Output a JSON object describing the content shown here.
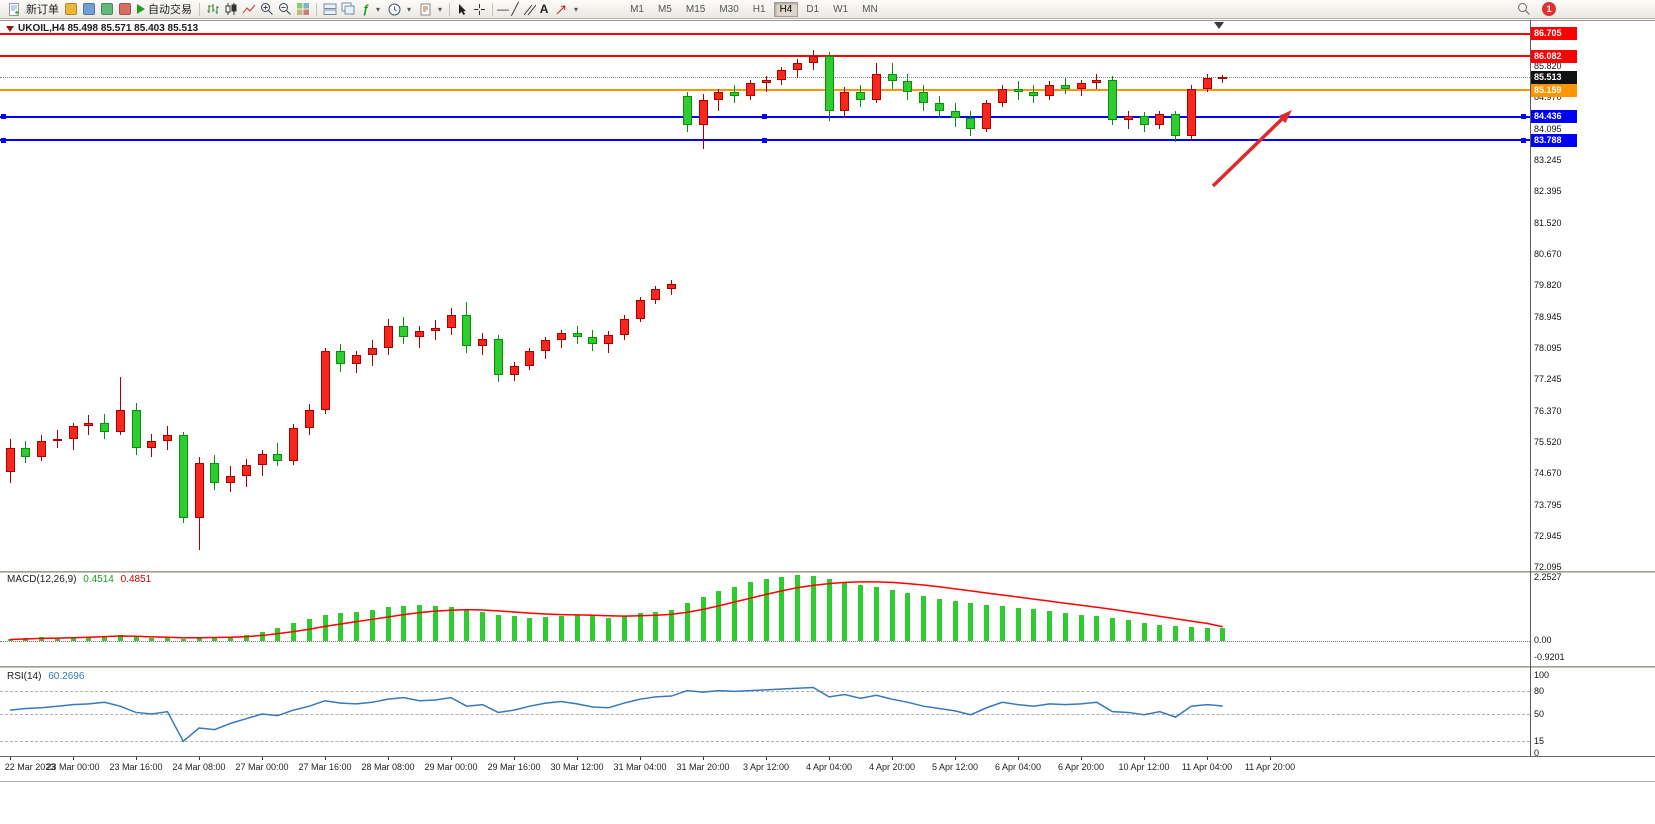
{
  "toolbar": {
    "new_order_label": "新订单",
    "autotrading_label": "自动交易",
    "timeframes": [
      "M1",
      "M5",
      "M15",
      "M30",
      "H1",
      "H4",
      "D1",
      "W1",
      "MN"
    ],
    "active_timeframe": "H4",
    "notification_count": "1",
    "glyphs": {
      "indicators": "ƒ",
      "hline": "—",
      "trendline": "╱",
      "text_tool": "A",
      "caret": "▾"
    }
  },
  "main_chart": {
    "title": "UKOIL,H4 85.498 85.571 85.403 85.513",
    "symbol": "UKOIL",
    "timeframe": "H4",
    "ohlc_display": {
      "open": "85.498",
      "high": "85.571",
      "low": "85.403",
      "close": "85.513"
    },
    "current_price": 85.513,
    "axis_labels": [
      "85.820",
      "84.970",
      "84.095",
      "83.245",
      "82.395",
      "81.520",
      "80.670",
      "79.820",
      "78.945",
      "78.095",
      "77.245",
      "76.370",
      "75.520",
      "74.670",
      "73.795",
      "72.945",
      "72.095"
    ],
    "price_badges": [
      {
        "value": "86.705",
        "color": "#ff0000"
      },
      {
        "value": "86.082",
        "color": "#ff0000"
      },
      {
        "value": "85.513",
        "color": "#111111"
      },
      {
        "value": "85.159",
        "color": "#ff9500"
      },
      {
        "value": "84.436",
        "color": "#0000ff"
      },
      {
        "value": "83.788",
        "color": "#0000ff"
      }
    ],
    "hlines": [
      {
        "price": 86.705,
        "color": "#ff0000",
        "width": 2,
        "handles": false
      },
      {
        "price": 86.082,
        "color": "#ff0000",
        "width": 2,
        "handles": false
      },
      {
        "price": 85.159,
        "color": "#ff9500",
        "width": 2,
        "handles": false
      },
      {
        "price": 84.436,
        "color": "#0000ff",
        "width": 2,
        "handles": true
      },
      {
        "price": 83.788,
        "color": "#0000ff",
        "width": 2,
        "handles": true
      }
    ],
    "candles": [
      [
        74.7,
        75.6,
        74.4,
        75.35
      ],
      [
        75.35,
        75.55,
        74.95,
        75.1
      ],
      [
        75.1,
        75.7,
        75.0,
        75.55
      ],
      [
        75.55,
        75.85,
        75.35,
        75.6
      ],
      [
        75.6,
        76.05,
        75.3,
        75.95
      ],
      [
        75.95,
        76.25,
        75.7,
        76.05
      ],
      [
        76.05,
        76.3,
        75.6,
        75.8
      ],
      [
        75.8,
        77.3,
        75.7,
        76.4
      ],
      [
        76.4,
        76.6,
        75.15,
        75.35
      ],
      [
        75.35,
        75.75,
        75.1,
        75.55
      ],
      [
        75.55,
        75.95,
        75.3,
        75.7
      ],
      [
        75.7,
        75.8,
        73.3,
        73.45
      ],
      [
        73.45,
        75.1,
        72.55,
        74.95
      ],
      [
        74.95,
        75.15,
        74.2,
        74.4
      ],
      [
        74.4,
        74.85,
        74.15,
        74.6
      ],
      [
        74.6,
        75.05,
        74.3,
        74.9
      ],
      [
        74.9,
        75.3,
        74.6,
        75.2
      ],
      [
        75.2,
        75.5,
        74.85,
        75.0
      ],
      [
        75.0,
        76.0,
        74.9,
        75.9
      ],
      [
        75.9,
        76.55,
        75.7,
        76.4
      ],
      [
        76.4,
        78.1,
        76.3,
        78.0
      ],
      [
        78.0,
        78.2,
        77.45,
        77.65
      ],
      [
        77.65,
        78.0,
        77.4,
        77.9
      ],
      [
        77.9,
        78.3,
        77.6,
        78.1
      ],
      [
        78.1,
        78.9,
        77.9,
        78.7
      ],
      [
        78.7,
        78.95,
        78.2,
        78.4
      ],
      [
        78.4,
        78.7,
        78.1,
        78.55
      ],
      [
        78.55,
        78.85,
        78.3,
        78.65
      ],
      [
        78.65,
        79.2,
        78.45,
        79.0
      ],
      [
        79.0,
        79.35,
        77.95,
        78.15
      ],
      [
        78.15,
        78.5,
        77.9,
        78.35
      ],
      [
        78.35,
        78.45,
        77.15,
        77.35
      ],
      [
        77.35,
        77.7,
        77.2,
        77.6
      ],
      [
        77.6,
        78.1,
        77.5,
        78.0
      ],
      [
        78.0,
        78.4,
        77.8,
        78.3
      ],
      [
        78.3,
        78.6,
        78.1,
        78.5
      ],
      [
        78.5,
        78.7,
        78.2,
        78.4
      ],
      [
        78.4,
        78.6,
        78.0,
        78.2
      ],
      [
        78.2,
        78.55,
        77.95,
        78.45
      ],
      [
        78.45,
        79.0,
        78.3,
        78.9
      ],
      [
        78.9,
        79.5,
        78.8,
        79.4
      ],
      [
        79.4,
        79.8,
        79.3,
        79.7
      ],
      [
        79.7,
        79.95,
        79.55,
        79.85
      ],
      [
        85.0,
        85.1,
        84.0,
        84.2
      ],
      [
        84.2,
        85.05,
        83.55,
        84.9
      ],
      [
        84.9,
        85.2,
        84.6,
        85.1
      ],
      [
        85.1,
        85.3,
        84.8,
        85.0
      ],
      [
        85.0,
        85.45,
        84.9,
        85.35
      ],
      [
        85.35,
        85.55,
        85.1,
        85.45
      ],
      [
        85.45,
        85.8,
        85.3,
        85.7
      ],
      [
        85.7,
        86.0,
        85.5,
        85.9
      ],
      [
        85.9,
        86.25,
        85.7,
        86.1
      ],
      [
        86.1,
        86.2,
        84.3,
        84.6
      ],
      [
        84.6,
        85.25,
        84.4,
        85.1
      ],
      [
        85.1,
        85.3,
        84.7,
        84.9
      ],
      [
        84.9,
        85.9,
        84.8,
        85.6
      ],
      [
        85.6,
        85.9,
        85.2,
        85.4
      ],
      [
        85.4,
        85.6,
        84.9,
        85.1
      ],
      [
        85.1,
        85.3,
        84.6,
        84.8
      ],
      [
        84.8,
        85.0,
        84.4,
        84.6
      ],
      [
        84.6,
        84.8,
        84.15,
        84.4
      ],
      [
        84.4,
        84.6,
        83.9,
        84.1
      ],
      [
        84.1,
        84.9,
        84.0,
        84.8
      ],
      [
        84.8,
        85.3,
        84.7,
        85.2
      ],
      [
        85.2,
        85.4,
        84.9,
        85.1
      ],
      [
        85.1,
        85.3,
        84.8,
        85.0
      ],
      [
        85.0,
        85.4,
        84.9,
        85.3
      ],
      [
        85.3,
        85.5,
        85.05,
        85.2
      ],
      [
        85.2,
        85.45,
        85.0,
        85.35
      ],
      [
        85.35,
        85.6,
        85.2,
        85.45
      ],
      [
        85.45,
        85.55,
        84.2,
        84.35
      ],
      [
        84.35,
        84.6,
        84.1,
        84.45
      ],
      [
        84.45,
        84.55,
        84.0,
        84.2
      ],
      [
        84.2,
        84.6,
        84.1,
        84.5
      ],
      [
        84.5,
        84.6,
        83.75,
        83.9
      ],
      [
        83.9,
        85.3,
        83.8,
        85.2
      ],
      [
        85.2,
        85.6,
        85.1,
        85.5
      ],
      [
        85.5,
        85.57,
        85.35,
        85.513
      ]
    ]
  },
  "macd": {
    "name": "MACD(12,26,9)",
    "value_main": "0.4514",
    "value_signal": "0.4851",
    "axis_top": "2.2527",
    "axis_zero": "0.00",
    "axis_bottom": "-0.9201",
    "histogram": [
      0.08,
      0.1,
      0.12,
      0.1,
      0.12,
      0.15,
      0.18,
      0.2,
      0.15,
      0.1,
      0.12,
      0.08,
      0.1,
      0.12,
      0.15,
      0.2,
      0.3,
      0.45,
      0.6,
      0.75,
      0.9,
      0.95,
      1.0,
      1.05,
      1.15,
      1.2,
      1.22,
      1.2,
      1.15,
      1.1,
      1.0,
      0.9,
      0.85,
      0.8,
      0.82,
      0.85,
      0.88,
      0.85,
      0.8,
      0.85,
      0.95,
      1.0,
      1.05,
      1.3,
      1.5,
      1.7,
      1.85,
      2.0,
      2.1,
      2.2,
      2.2527,
      2.22,
      2.1,
      2.0,
      1.9,
      1.85,
      1.75,
      1.65,
      1.55,
      1.45,
      1.35,
      1.28,
      1.22,
      1.18,
      1.12,
      1.08,
      1.02,
      0.95,
      0.9,
      0.85,
      0.78,
      0.7,
      0.62,
      0.56,
      0.5,
      0.47,
      0.455,
      0.4514
    ],
    "signal": [
      0.05,
      0.07,
      0.09,
      0.1,
      0.11,
      0.13,
      0.15,
      0.17,
      0.16,
      0.14,
      0.13,
      0.11,
      0.11,
      0.12,
      0.13,
      0.15,
      0.19,
      0.25,
      0.32,
      0.4,
      0.5,
      0.58,
      0.66,
      0.74,
      0.82,
      0.9,
      0.97,
      1.02,
      1.05,
      1.07,
      1.06,
      1.03,
      0.99,
      0.95,
      0.92,
      0.9,
      0.89,
      0.88,
      0.86,
      0.85,
      0.86,
      0.88,
      0.91,
      0.98,
      1.08,
      1.2,
      1.33,
      1.46,
      1.59,
      1.71,
      1.82,
      1.9,
      1.96,
      2.0,
      2.02,
      2.02,
      2.0,
      1.96,
      1.91,
      1.85,
      1.78,
      1.71,
      1.64,
      1.57,
      1.5,
      1.43,
      1.36,
      1.29,
      1.22,
      1.15,
      1.08,
      1.0,
      0.92,
      0.84,
      0.76,
      0.68,
      0.6,
      0.4851
    ]
  },
  "rsi": {
    "name": "RSI(14)",
    "value": "60.2696",
    "axis": [
      "100",
      "80",
      "50",
      "15",
      "0"
    ],
    "levels": [
      80,
      50,
      15
    ],
    "values": [
      55,
      57,
      58,
      60,
      62,
      63,
      65,
      60,
      52,
      50,
      53,
      15,
      32,
      30,
      38,
      44,
      50,
      48,
      55,
      60,
      67,
      64,
      63,
      65,
      69,
      71,
      67,
      68,
      71,
      60,
      62,
      52,
      55,
      60,
      64,
      66,
      63,
      59,
      58,
      64,
      69,
      72,
      73,
      80,
      78,
      80,
      79,
      80,
      81,
      82,
      83,
      84,
      72,
      75,
      70,
      74,
      69,
      65,
      60,
      57,
      54,
      49,
      58,
      65,
      62,
      60,
      63,
      62,
      63,
      65,
      53,
      52,
      49,
      53,
      46,
      60,
      62,
      60.2696
    ]
  },
  "time_axis": {
    "labels": [
      "22 Mar 2023",
      "23 Mar 00:00",
      "23 Mar 16:00",
      "24 Mar 08:00",
      "27 Mar 00:00",
      "27 Mar 16:00",
      "28 Mar 08:00",
      "29 Mar 00:00",
      "29 Mar 16:00",
      "30 Mar 12:00",
      "31 Mar 04:00",
      "31 Mar 20:00",
      "3 Apr 12:00",
      "4 Apr 04:00",
      "4 Apr 20:00",
      "5 Apr 12:00",
      "6 Apr 04:00",
      "6 Apr 20:00",
      "10 Apr 12:00",
      "11 Apr 04:00",
      "11 Apr 20:00"
    ]
  },
  "colors": {
    "up_fill": "#f5281b",
    "up_border": "#aa0000",
    "down_fill": "#2ecc2e",
    "down_border": "#0a8f0a",
    "macd_histogram": "#2ecc2e",
    "macd_signal": "#ff0000",
    "rsi_line": "#3779bd",
    "arrow": "#dd2b2b"
  }
}
